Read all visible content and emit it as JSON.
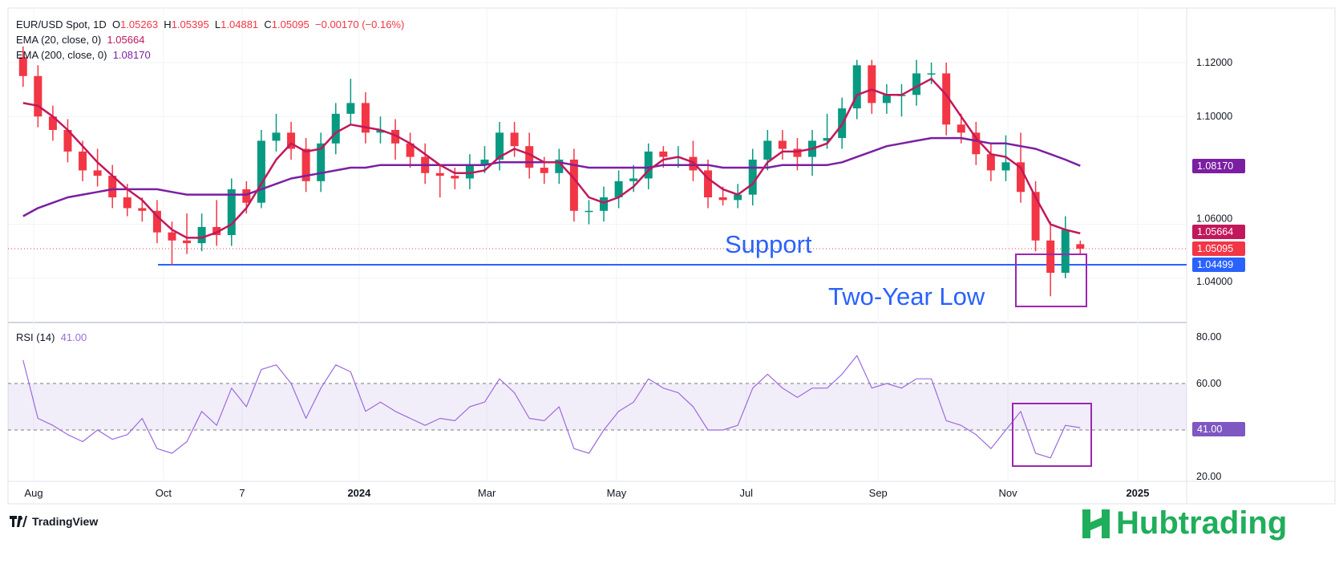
{
  "header": {
    "symbol": "EUR/USD Spot, 1D",
    "o_label": "O",
    "o": "1.05263",
    "h_label": "H",
    "h": "1.05395",
    "l_label": "L",
    "l": "1.04881",
    "c_label": "C",
    "c": "1.05095",
    "change": "−0.00170 (−0.16%)",
    "ema20_label": "EMA (20, close, 0)",
    "ema20_value": "1.05664",
    "ema200_label": "EMA (200, close, 0)",
    "ema200_value": "1.08170",
    "rsi_label": "RSI (14)",
    "rsi_value": "41.00"
  },
  "price_labels": {
    "ema200": "1.08170",
    "ema20": "1.05664",
    "last": "1.05095",
    "support": "1.04499",
    "rsi": "41.00"
  },
  "annotations": {
    "support": "Support",
    "low": "Two-Year Low"
  },
  "footer": {
    "tradingview": "TradingView",
    "hub_logo": "Hubtrading"
  },
  "colors": {
    "up": "#089981",
    "down": "#f23645",
    "ema20": "#c2185b",
    "ema200": "#7b1fa2",
    "rsi": "#9c6ade",
    "support": "#2962ff",
    "box": "#9c27b0",
    "brand": "#1fae5b"
  },
  "chart_data": {
    "type": "candlestick",
    "title": "EUR/USD Spot, 1D",
    "price_ticks": [
      "1.12000",
      "1.10000",
      "1.06000",
      "1.04000"
    ],
    "price_range": [
      1.03,
      1.13
    ],
    "rsi_ticks": [
      "80.00",
      "60.00",
      "20.00"
    ],
    "rsi_range": [
      20,
      80
    ],
    "rsi_band": [
      40,
      60
    ],
    "time_ticks": [
      {
        "label": "Aug",
        "date": "2023-08-01",
        "bold": false
      },
      {
        "label": "Oct",
        "date": "2023-10-01",
        "bold": false
      },
      {
        "label": "7",
        "date": "2023-11-07",
        "bold": false
      },
      {
        "label": "2024",
        "date": "2024-01-01",
        "bold": true
      },
      {
        "label": "Mar",
        "date": "2024-03-01",
        "bold": false
      },
      {
        "label": "May",
        "date": "2024-05-01",
        "bold": false
      },
      {
        "label": "Jul",
        "date": "2024-07-01",
        "bold": false
      },
      {
        "label": "Sep",
        "date": "2024-09-01",
        "bold": false
      },
      {
        "label": "Nov",
        "date": "2024-11-01",
        "bold": false
      },
      {
        "label": "2025",
        "date": "2025-01-01",
        "bold": true
      }
    ],
    "support_level": 1.04499,
    "last_price": 1.05095,
    "dates": [
      "2023-07-24",
      "2023-07-31",
      "2023-08-07",
      "2023-08-14",
      "2023-08-21",
      "2023-08-28",
      "2023-09-04",
      "2023-09-11",
      "2023-09-18",
      "2023-09-25",
      "2023-10-02",
      "2023-10-09",
      "2023-10-16",
      "2023-10-23",
      "2023-10-30",
      "2023-11-06",
      "2023-11-13",
      "2023-11-20",
      "2023-11-27",
      "2023-12-04",
      "2023-12-11",
      "2023-12-18",
      "2023-12-25",
      "2024-01-01",
      "2024-01-08",
      "2024-01-15",
      "2024-01-22",
      "2024-01-29",
      "2024-02-05",
      "2024-02-12",
      "2024-02-19",
      "2024-02-26",
      "2024-03-04",
      "2024-03-11",
      "2024-03-18",
      "2024-03-25",
      "2024-04-01",
      "2024-04-08",
      "2024-04-15",
      "2024-04-22",
      "2024-04-29",
      "2024-05-06",
      "2024-05-13",
      "2024-05-20",
      "2024-05-27",
      "2024-06-03",
      "2024-06-10",
      "2024-06-17",
      "2024-06-24",
      "2024-07-01",
      "2024-07-08",
      "2024-07-15",
      "2024-07-22",
      "2024-07-29",
      "2024-08-05",
      "2024-08-12",
      "2024-08-19",
      "2024-08-26",
      "2024-09-02",
      "2024-09-09",
      "2024-09-16",
      "2024-09-23",
      "2024-09-30",
      "2024-10-07",
      "2024-10-14",
      "2024-10-21",
      "2024-10-28",
      "2024-11-04",
      "2024-11-11",
      "2024-11-18",
      "2024-11-25",
      "2024-12-02"
    ],
    "ohlc": [
      [
        1.122,
        1.126,
        1.111,
        1.115
      ],
      [
        1.115,
        1.119,
        1.096,
        1.1
      ],
      [
        1.1,
        1.104,
        1.091,
        1.095
      ],
      [
        1.095,
        1.099,
        1.083,
        1.087
      ],
      [
        1.087,
        1.091,
        1.076,
        1.08
      ],
      [
        1.08,
        1.088,
        1.074,
        1.078
      ],
      [
        1.078,
        1.082,
        1.066,
        1.07
      ],
      [
        1.07,
        1.075,
        1.063,
        1.066
      ],
      [
        1.066,
        1.07,
        1.061,
        1.065
      ],
      [
        1.065,
        1.069,
        1.053,
        1.057
      ],
      [
        1.057,
        1.061,
        1.0448,
        1.054
      ],
      [
        1.054,
        1.064,
        1.049,
        1.053
      ],
      [
        1.053,
        1.064,
        1.05,
        1.059
      ],
      [
        1.059,
        1.069,
        1.052,
        1.056
      ],
      [
        1.056,
        1.077,
        1.052,
        1.073
      ],
      [
        1.073,
        1.076,
        1.064,
        1.068
      ],
      [
        1.068,
        1.095,
        1.066,
        1.091
      ],
      [
        1.091,
        1.101,
        1.087,
        1.094
      ],
      [
        1.094,
        1.098,
        1.084,
        1.088
      ],
      [
        1.088,
        1.092,
        1.072,
        1.076
      ],
      [
        1.076,
        1.094,
        1.072,
        1.09
      ],
      [
        1.09,
        1.105,
        1.086,
        1.101
      ],
      [
        1.101,
        1.114,
        1.097,
        1.105
      ],
      [
        1.105,
        1.109,
        1.09,
        1.094
      ],
      [
        1.094,
        1.1,
        1.09,
        1.095
      ],
      [
        1.095,
        1.099,
        1.084,
        1.09
      ],
      [
        1.09,
        1.094,
        1.081,
        1.085
      ],
      [
        1.085,
        1.09,
        1.075,
        1.079
      ],
      [
        1.079,
        1.082,
        1.07,
        1.078
      ],
      [
        1.078,
        1.081,
        1.073,
        1.077
      ],
      [
        1.077,
        1.086,
        1.073,
        1.082
      ],
      [
        1.082,
        1.089,
        1.079,
        1.084
      ],
      [
        1.084,
        1.098,
        1.08,
        1.094
      ],
      [
        1.094,
        1.098,
        1.085,
        1.089
      ],
      [
        1.089,
        1.094,
        1.077,
        1.081
      ],
      [
        1.081,
        1.085,
        1.075,
        1.079
      ],
      [
        1.079,
        1.088,
        1.075,
        1.084
      ],
      [
        1.084,
        1.088,
        1.061,
        1.065
      ],
      [
        1.065,
        1.069,
        1.06,
        1.065
      ],
      [
        1.065,
        1.074,
        1.061,
        1.07
      ],
      [
        1.07,
        1.08,
        1.066,
        1.076
      ],
      [
        1.076,
        1.082,
        1.072,
        1.077
      ],
      [
        1.077,
        1.09,
        1.073,
        1.087
      ],
      [
        1.087,
        1.089,
        1.081,
        1.085
      ],
      [
        1.085,
        1.089,
        1.081,
        1.085
      ],
      [
        1.085,
        1.091,
        1.076,
        1.08
      ],
      [
        1.08,
        1.084,
        1.066,
        1.07
      ],
      [
        1.07,
        1.074,
        1.067,
        1.069
      ],
      [
        1.069,
        1.075,
        1.066,
        1.071
      ],
      [
        1.071,
        1.088,
        1.067,
        1.084
      ],
      [
        1.084,
        1.095,
        1.08,
        1.091
      ],
      [
        1.091,
        1.095,
        1.084,
        1.088
      ],
      [
        1.088,
        1.092,
        1.08,
        1.085
      ],
      [
        1.085,
        1.095,
        1.078,
        1.091
      ],
      [
        1.091,
        1.101,
        1.088,
        1.092
      ],
      [
        1.092,
        1.107,
        1.088,
        1.103
      ],
      [
        1.103,
        1.121,
        1.099,
        1.119
      ],
      [
        1.119,
        1.121,
        1.101,
        1.105
      ],
      [
        1.105,
        1.112,
        1.101,
        1.108
      ],
      [
        1.108,
        1.112,
        1.1,
        1.108
      ],
      [
        1.108,
        1.121,
        1.104,
        1.116
      ],
      [
        1.116,
        1.12,
        1.112,
        1.116
      ],
      [
        1.116,
        1.12,
        1.093,
        1.097
      ],
      [
        1.097,
        1.101,
        1.09,
        1.094
      ],
      [
        1.094,
        1.098,
        1.082,
        1.086
      ],
      [
        1.086,
        1.09,
        1.076,
        1.08
      ],
      [
        1.08,
        1.093,
        1.076,
        1.083
      ],
      [
        1.083,
        1.094,
        1.068,
        1.072
      ],
      [
        1.072,
        1.076,
        1.05,
        1.054
      ],
      [
        1.054,
        1.061,
        1.0333,
        1.042
      ],
      [
        1.042,
        1.063,
        1.04,
        1.058
      ],
      [
        1.05263,
        1.05395,
        1.04881,
        1.05095
      ]
    ],
    "ema20": [
      1.105,
      1.104,
      1.1,
      1.095,
      1.089,
      1.083,
      1.078,
      1.073,
      1.069,
      1.063,
      1.058,
      1.055,
      1.055,
      1.057,
      1.06,
      1.066,
      1.075,
      1.084,
      1.09,
      1.087,
      1.088,
      1.094,
      1.097,
      1.096,
      1.095,
      1.093,
      1.09,
      1.086,
      1.082,
      1.079,
      1.079,
      1.08,
      1.085,
      1.088,
      1.086,
      1.083,
      1.083,
      1.077,
      1.07,
      1.068,
      1.07,
      1.074,
      1.08,
      1.084,
      1.085,
      1.083,
      1.077,
      1.073,
      1.071,
      1.075,
      1.083,
      1.087,
      1.087,
      1.088,
      1.09,
      1.097,
      1.108,
      1.11,
      1.108,
      1.108,
      1.111,
      1.114,
      1.108,
      1.1,
      1.092,
      1.086,
      1.085,
      1.081,
      1.07,
      1.06,
      1.058,
      1.05664
    ],
    "ema200": [
      1.063,
      1.066,
      1.068,
      1.07,
      1.071,
      1.072,
      1.073,
      1.073,
      1.073,
      1.073,
      1.072,
      1.071,
      1.071,
      1.071,
      1.071,
      1.071,
      1.073,
      1.075,
      1.077,
      1.078,
      1.079,
      1.08,
      1.081,
      1.081,
      1.082,
      1.082,
      1.082,
      1.082,
      1.082,
      1.082,
      1.082,
      1.082,
      1.083,
      1.083,
      1.083,
      1.083,
      1.083,
      1.082,
      1.081,
      1.081,
      1.081,
      1.081,
      1.081,
      1.082,
      1.082,
      1.082,
      1.082,
      1.081,
      1.081,
      1.081,
      1.081,
      1.082,
      1.082,
      1.082,
      1.082,
      1.083,
      1.085,
      1.087,
      1.089,
      1.09,
      1.091,
      1.092,
      1.092,
      1.092,
      1.091,
      1.09,
      1.09,
      1.089,
      1.088,
      1.086,
      1.084,
      1.0817
    ],
    "rsi": [
      70,
      45,
      42,
      38,
      35,
      40,
      36,
      38,
      45,
      32,
      30,
      35,
      48,
      42,
      58,
      50,
      66,
      68,
      60,
      45,
      58,
      68,
      65,
      48,
      52,
      48,
      45,
      42,
      45,
      44,
      50,
      52,
      62,
      56,
      45,
      44,
      50,
      32,
      30,
      40,
      48,
      52,
      62,
      58,
      56,
      50,
      40,
      40,
      42,
      58,
      64,
      58,
      54,
      58,
      58,
      64,
      72,
      58,
      60,
      58,
      62,
      62,
      44,
      42,
      38,
      32,
      40,
      48,
      30,
      28,
      42,
      41
    ]
  }
}
